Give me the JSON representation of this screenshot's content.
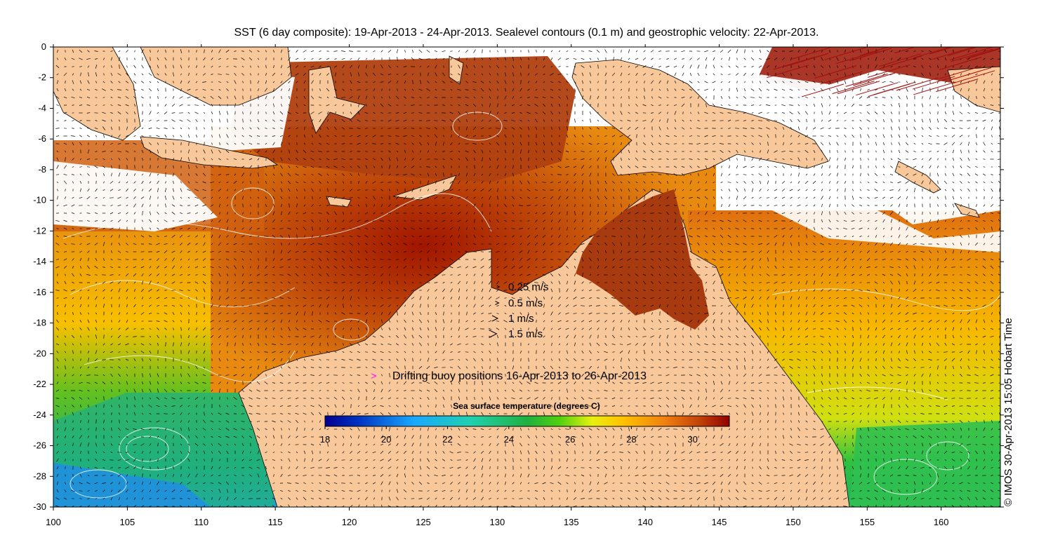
{
  "title": "SST (6 day composite): 19-Apr-2013 - 24-Apr-2013. Sealevel contours (0.1 m) and geostrophic velocity: 22-Apr-2013.",
  "credit": "© IMOS 30-Apr-2013 15:05 Hobart Time",
  "map": {
    "lon_range": [
      100,
      164
    ],
    "lat_range": [
      -30,
      0
    ],
    "x_ticks": [
      "100",
      "105",
      "110",
      "115",
      "120",
      "125",
      "130",
      "135",
      "140",
      "145",
      "150",
      "155",
      "160"
    ],
    "y_ticks": [
      "0",
      "-2",
      "-4",
      "-6",
      "-8",
      "-10",
      "-12",
      "-14",
      "-16",
      "-18",
      "-20",
      "-22",
      "-24",
      "-26",
      "-28",
      "-30"
    ],
    "colors": {
      "land": "#f8c89a",
      "no_data": "#ffffff",
      "contour": "#ffffff",
      "buoy": "#ff22ff"
    }
  },
  "velocity_legend": [
    {
      "label": "0.25 m/s",
      "speed": 0.25
    },
    {
      "label": "0.5 m/s",
      "speed": 0.5
    },
    {
      "label": "1 m/s",
      "speed": 1
    },
    {
      "label": "1.5 m/s",
      "speed": 1.5
    }
  ],
  "buoy_legend": {
    "symbol": ">",
    "label": "Drifting buoy positions 16-Apr-2013 to 26-Apr-2013"
  },
  "colorbar": {
    "title": "Sea surface temperature (degrees C)",
    "min": 18,
    "max": 31.2,
    "tick_labels": [
      "18",
      "20",
      "22",
      "24",
      "26",
      "28",
      "30"
    ]
  }
}
